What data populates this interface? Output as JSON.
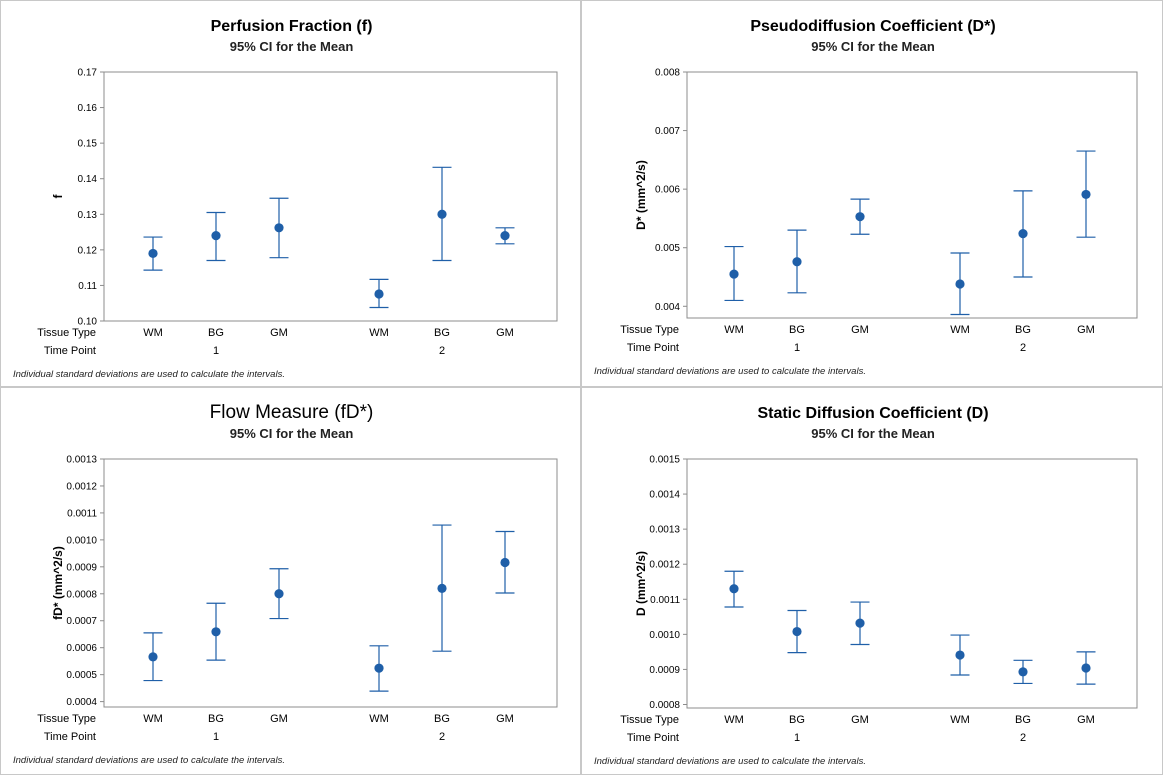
{
  "chart_data": [
    {
      "type": "interval",
      "title": "Perfusion Fraction (f)",
      "subtitle": "95% CI for the Mean",
      "ylabel": "f",
      "ylim": [
        0.1,
        0.17
      ],
      "yticks": [
        "0.10",
        "0.11",
        "0.12",
        "0.13",
        "0.14",
        "0.15",
        "0.16",
        "0.17"
      ],
      "row_labels": {
        "tissue": "Tissue Type",
        "time": "Time Point"
      },
      "groups": [
        {
          "time": "1",
          "points": [
            {
              "tissue": "WM",
              "mean": 0.119,
              "low": 0.1143,
              "high": 0.1236
            },
            {
              "tissue": "BG",
              "mean": 0.124,
              "low": 0.117,
              "high": 0.1305
            },
            {
              "tissue": "GM",
              "mean": 0.1262,
              "low": 0.1178,
              "high": 0.1345
            }
          ]
        },
        {
          "time": "2",
          "points": [
            {
              "tissue": "WM",
              "mean": 0.1076,
              "low": 0.1038,
              "high": 0.1117
            },
            {
              "tissue": "BG",
              "mean": 0.13,
              "low": 0.117,
              "high": 0.1432
            },
            {
              "tissue": "GM",
              "mean": 0.124,
              "low": 0.1217,
              "high": 0.1262
            }
          ]
        }
      ],
      "footnote": "Individual standard deviations are used to calculate the intervals."
    },
    {
      "type": "interval",
      "title": "Pseudodiffusion Coefficient (D*)",
      "subtitle": "95% CI for the Mean",
      "ylabel": "D* (mm^2/s)",
      "ylim": [
        0.0038,
        0.008
      ],
      "yticks": [
        "0.004",
        "0.005",
        "0.006",
        "0.007",
        "0.008"
      ],
      "row_labels": {
        "tissue": "Tissue Type",
        "time": "Time Point"
      },
      "groups": [
        {
          "time": "1",
          "points": [
            {
              "tissue": "WM",
              "mean": 0.00455,
              "low": 0.0041,
              "high": 0.00502
            },
            {
              "tissue": "BG",
              "mean": 0.00476,
              "low": 0.00423,
              "high": 0.0053
            },
            {
              "tissue": "GM",
              "mean": 0.00553,
              "low": 0.00523,
              "high": 0.00583
            }
          ]
        },
        {
          "time": "2",
          "points": [
            {
              "tissue": "WM",
              "mean": 0.00438,
              "low": 0.00386,
              "high": 0.00491
            },
            {
              "tissue": "BG",
              "mean": 0.00524,
              "low": 0.0045,
              "high": 0.00597
            },
            {
              "tissue": "GM",
              "mean": 0.00591,
              "low": 0.00518,
              "high": 0.00665
            }
          ]
        }
      ],
      "footnote": "Individual standard deviations are used to calculate the intervals."
    },
    {
      "type": "interval",
      "title": "Flow Measure (fD*)",
      "subtitle": "95% CI for the Mean",
      "ylabel": "fD* (mm^2/s)",
      "ylim": [
        0.00038,
        0.0013
      ],
      "yticks": [
        "0.0004",
        "0.0005",
        "0.0006",
        "0.0007",
        "0.0008",
        "0.0009",
        "0.0010",
        "0.0011",
        "0.0012",
        "0.0013"
      ],
      "row_labels": {
        "tissue": "Tissue Type",
        "time": "Time Point"
      },
      "groups": [
        {
          "time": "1",
          "points": [
            {
              "tissue": "WM",
              "mean": 0.000566,
              "low": 0.000478,
              "high": 0.000655
            },
            {
              "tissue": "BG",
              "mean": 0.000659,
              "low": 0.000554,
              "high": 0.000765
            },
            {
              "tissue": "GM",
              "mean": 0.0008,
              "low": 0.000708,
              "high": 0.000893
            }
          ]
        },
        {
          "time": "2",
          "points": [
            {
              "tissue": "WM",
              "mean": 0.000524,
              "low": 0.000439,
              "high": 0.000607
            },
            {
              "tissue": "BG",
              "mean": 0.00082,
              "low": 0.000587,
              "high": 0.001055
            },
            {
              "tissue": "GM",
              "mean": 0.000916,
              "low": 0.000803,
              "high": 0.001031
            }
          ]
        }
      ],
      "footnote": "Individual standard deviations are used to calculate the intervals."
    },
    {
      "type": "interval",
      "title": "Static Diffusion Coefficient (D)",
      "subtitle": "95% CI for the Mean",
      "ylabel": "D (mm^2/s)",
      "ylim": [
        0.00079,
        0.0015
      ],
      "yticks": [
        "0.0008",
        "0.0009",
        "0.0010",
        "0.0011",
        "0.0012",
        "0.0013",
        "0.0014",
        "0.0015"
      ],
      "row_labels": {
        "tissue": "Tissue Type",
        "time": "Time Point"
      },
      "groups": [
        {
          "time": "1",
          "points": [
            {
              "tissue": "WM",
              "mean": 0.00113,
              "low": 0.001078,
              "high": 0.00118
            },
            {
              "tissue": "BG",
              "mean": 0.001008,
              "low": 0.000948,
              "high": 0.001068
            },
            {
              "tissue": "GM",
              "mean": 0.001032,
              "low": 0.000971,
              "high": 0.001092
            }
          ]
        },
        {
          "time": "2",
          "points": [
            {
              "tissue": "WM",
              "mean": 0.000941,
              "low": 0.000884,
              "high": 0.000998
            },
            {
              "tissue": "BG",
              "mean": 0.000893,
              "low": 0.00086,
              "high": 0.000926
            },
            {
              "tissue": "GM",
              "mean": 0.000904,
              "low": 0.000858,
              "high": 0.00095
            }
          ]
        }
      ],
      "footnote": "Individual standard deviations are used to calculate the intervals."
    }
  ],
  "style": {
    "accent": "#1f5fa8",
    "frame": "#8c8c8c",
    "panel_border": "#c8c8c8"
  }
}
